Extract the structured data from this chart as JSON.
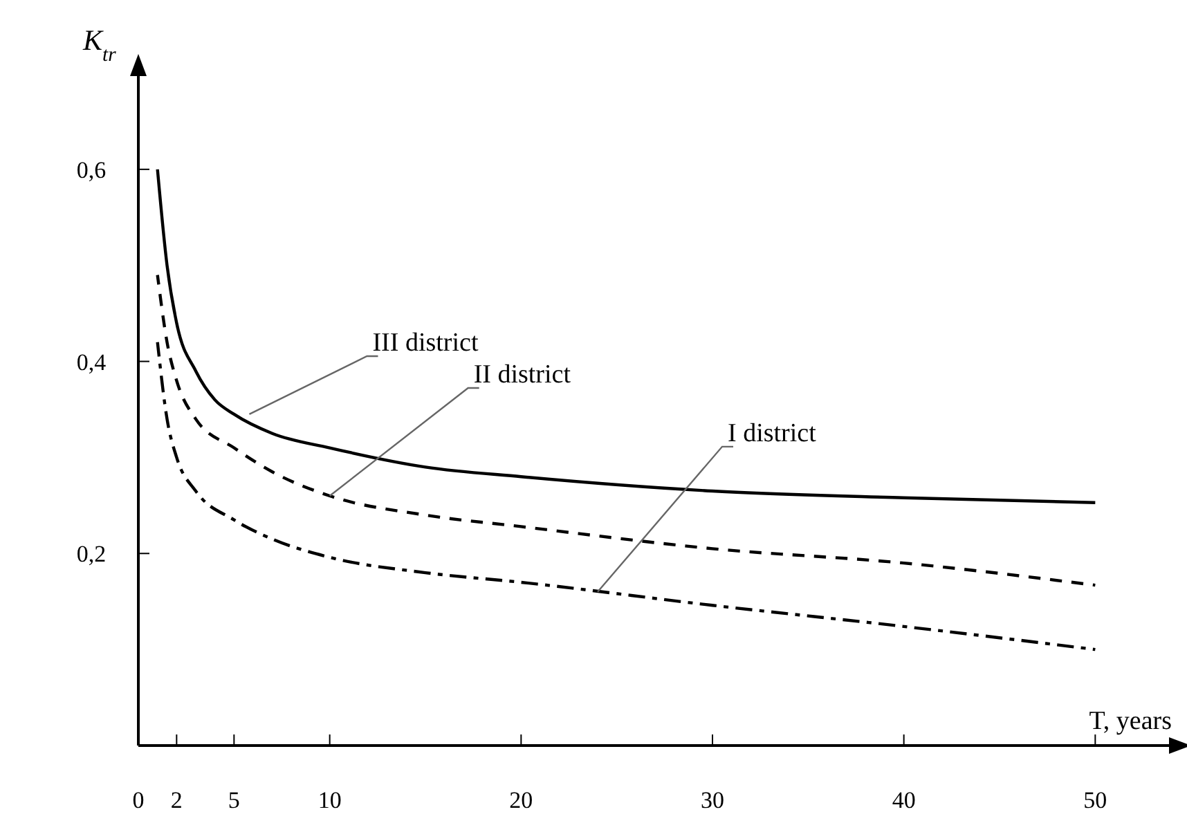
{
  "chart_data": {
    "type": "line",
    "xlabel": "T, years",
    "ylabel": "K$_{tr}$",
    "xlim": [
      0,
      54
    ],
    "ylim": [
      0,
      0.7
    ],
    "xticks": [
      0,
      2,
      5,
      10,
      20,
      30,
      40,
      50
    ],
    "yticks": [
      {
        "value": 0.2,
        "label": "0,2"
      },
      {
        "value": 0.4,
        "label": "0,4"
      },
      {
        "value": 0.6,
        "label": "0,6"
      }
    ],
    "grid": false,
    "marker": "none",
    "series": [
      {
        "color": "#000000",
        "line_style": "solid",
        "x": [
          1,
          1.5,
          2,
          3,
          4,
          5,
          7,
          10,
          15,
          20,
          30,
          40,
          50
        ],
        "values": [
          0.6,
          0.5,
          0.44,
          0.39,
          0.36,
          0.345,
          0.325,
          0.31,
          0.29,
          0.28,
          0.265,
          0.258,
          0.253
        ]
      },
      {
        "color": "#000000",
        "line_style": "dashed",
        "x": [
          1,
          1.5,
          2,
          3,
          5,
          7,
          10,
          15,
          20,
          30,
          40,
          50
        ],
        "values": [
          0.49,
          0.42,
          0.38,
          0.34,
          0.31,
          0.285,
          0.26,
          0.24,
          0.228,
          0.205,
          0.19,
          0.167
        ]
      },
      {
        "color": "#000000",
        "line_style": "dashdot",
        "x": [
          1,
          1.5,
          2,
          3,
          5,
          7,
          10,
          15,
          20,
          30,
          40,
          50
        ],
        "values": [
          0.42,
          0.34,
          0.3,
          0.265,
          0.235,
          0.215,
          0.196,
          0.18,
          0.17,
          0.146,
          0.124,
          0.1
        ]
      }
    ],
    "annotations": [
      {
        "text": "III district",
        "x": 5.8,
        "y": 0.345
      },
      {
        "text": "II district",
        "x": 10,
        "y": 0.26
      },
      {
        "text": "I district",
        "x": 24,
        "y": 0.16
      }
    ]
  }
}
